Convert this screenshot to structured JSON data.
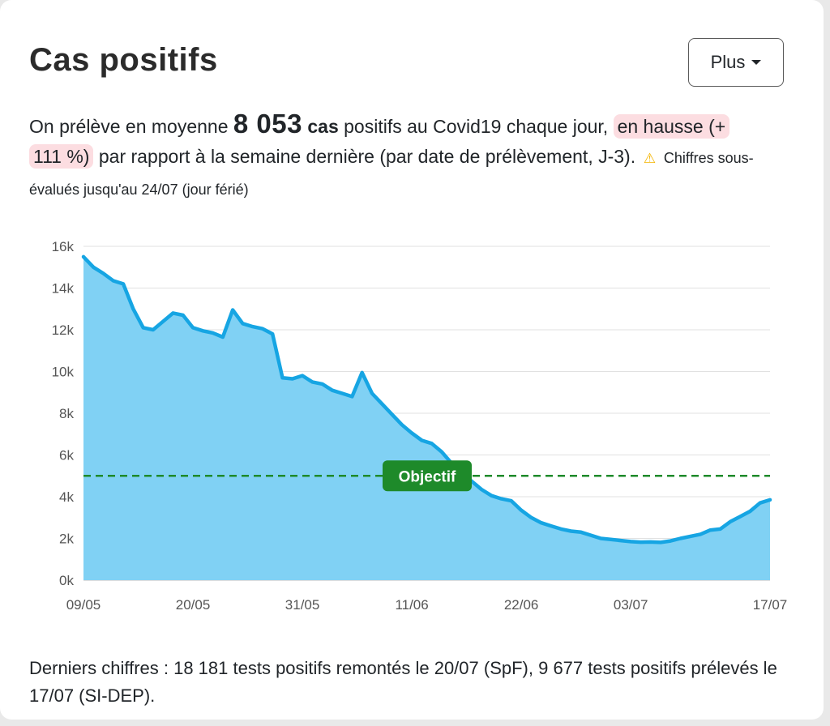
{
  "title": "Cas positifs",
  "menu_button": {
    "label": "Plus",
    "icon": "caret-down-icon"
  },
  "summary": {
    "part1": "On prélève en moyenne ",
    "value": "8 053",
    "unit": " cas",
    "part2": " positifs au Covid19 chaque jour, ",
    "trend": "en hausse (+ 111 %)",
    "part3": " par rapport à la semaine dernière (par date de prélèvement, J-3). ",
    "warning_icon": "warning-icon",
    "warning": "Chiffres sous-évalués jusqu'au 24/07 (jour férié)",
    "trend_color": "#fcdde1"
  },
  "chart_data": {
    "type": "area",
    "x_ticks": [
      "09/05",
      "20/05",
      "31/05",
      "11/06",
      "22/06",
      "03/07",
      "17/07"
    ],
    "y_ticks": [
      "0k",
      "2k",
      "4k",
      "6k",
      "8k",
      "10k",
      "12k",
      "14k",
      "16k"
    ],
    "ylim": [
      0,
      16000
    ],
    "x_range": [
      "09/05",
      "17/07"
    ],
    "grid": true,
    "series": [
      {
        "color": "#16a5e3",
        "fill": "#80d1f4",
        "points": [
          [
            "09/05",
            15500
          ],
          [
            "10/05",
            15000
          ],
          [
            "11/05",
            14700
          ],
          [
            "12/05",
            14350
          ],
          [
            "13/05",
            14200
          ],
          [
            "14/05",
            13000
          ],
          [
            "15/05",
            12100
          ],
          [
            "16/05",
            12000
          ],
          [
            "17/05",
            12400
          ],
          [
            "18/05",
            12800
          ],
          [
            "19/05",
            12700
          ],
          [
            "20/05",
            12100
          ],
          [
            "21/05",
            11950
          ],
          [
            "22/05",
            11850
          ],
          [
            "23/05",
            11650
          ],
          [
            "24/05",
            12950
          ],
          [
            "25/05",
            12300
          ],
          [
            "26/05",
            12150
          ],
          [
            "27/05",
            12050
          ],
          [
            "28/05",
            11800
          ],
          [
            "29/05",
            9700
          ],
          [
            "30/05",
            9650
          ],
          [
            "31/05",
            9800
          ],
          [
            "01/06",
            9500
          ],
          [
            "02/06",
            9400
          ],
          [
            "03/06",
            9100
          ],
          [
            "04/06",
            8950
          ],
          [
            "05/06",
            8800
          ],
          [
            "06/06",
            9950
          ],
          [
            "07/06",
            8950
          ],
          [
            "08/06",
            8450
          ],
          [
            "09/06",
            7950
          ],
          [
            "10/06",
            7450
          ],
          [
            "11/06",
            7050
          ],
          [
            "12/06",
            6700
          ],
          [
            "13/06",
            6550
          ],
          [
            "14/06",
            6150
          ],
          [
            "15/06",
            5600
          ],
          [
            "16/06",
            5100
          ],
          [
            "17/06",
            4750
          ],
          [
            "18/06",
            4350
          ],
          [
            "19/06",
            4050
          ],
          [
            "20/06",
            3900
          ],
          [
            "21/06",
            3800
          ],
          [
            "22/06",
            3350
          ],
          [
            "23/06",
            3000
          ],
          [
            "24/06",
            2750
          ],
          [
            "25/06",
            2600
          ],
          [
            "26/06",
            2450
          ],
          [
            "27/06",
            2350
          ],
          [
            "28/06",
            2300
          ],
          [
            "29/06",
            2150
          ],
          [
            "30/06",
            2000
          ],
          [
            "01/07",
            1950
          ],
          [
            "02/07",
            1900
          ],
          [
            "03/07",
            1850
          ],
          [
            "04/07",
            1820
          ],
          [
            "05/07",
            1830
          ],
          [
            "06/07",
            1810
          ],
          [
            "07/07",
            1880
          ],
          [
            "08/07",
            2000
          ],
          [
            "09/07",
            2100
          ],
          [
            "10/07",
            2200
          ],
          [
            "11/07",
            2400
          ],
          [
            "12/07",
            2450
          ],
          [
            "13/07",
            2800
          ],
          [
            "14/07",
            3050
          ],
          [
            "15/07",
            3300
          ],
          [
            "16/07",
            3700
          ],
          [
            "17/07",
            3850
          ]
        ]
      }
    ],
    "objective": {
      "label": "Objectif",
      "value": 5000,
      "color": "#1e8a2a"
    }
  },
  "footer": "Derniers chiffres : 18 181 tests positifs remontés le 20/07 (SpF), 9 677 tests positifs prélevés le 17/07 (SI-DEP)."
}
